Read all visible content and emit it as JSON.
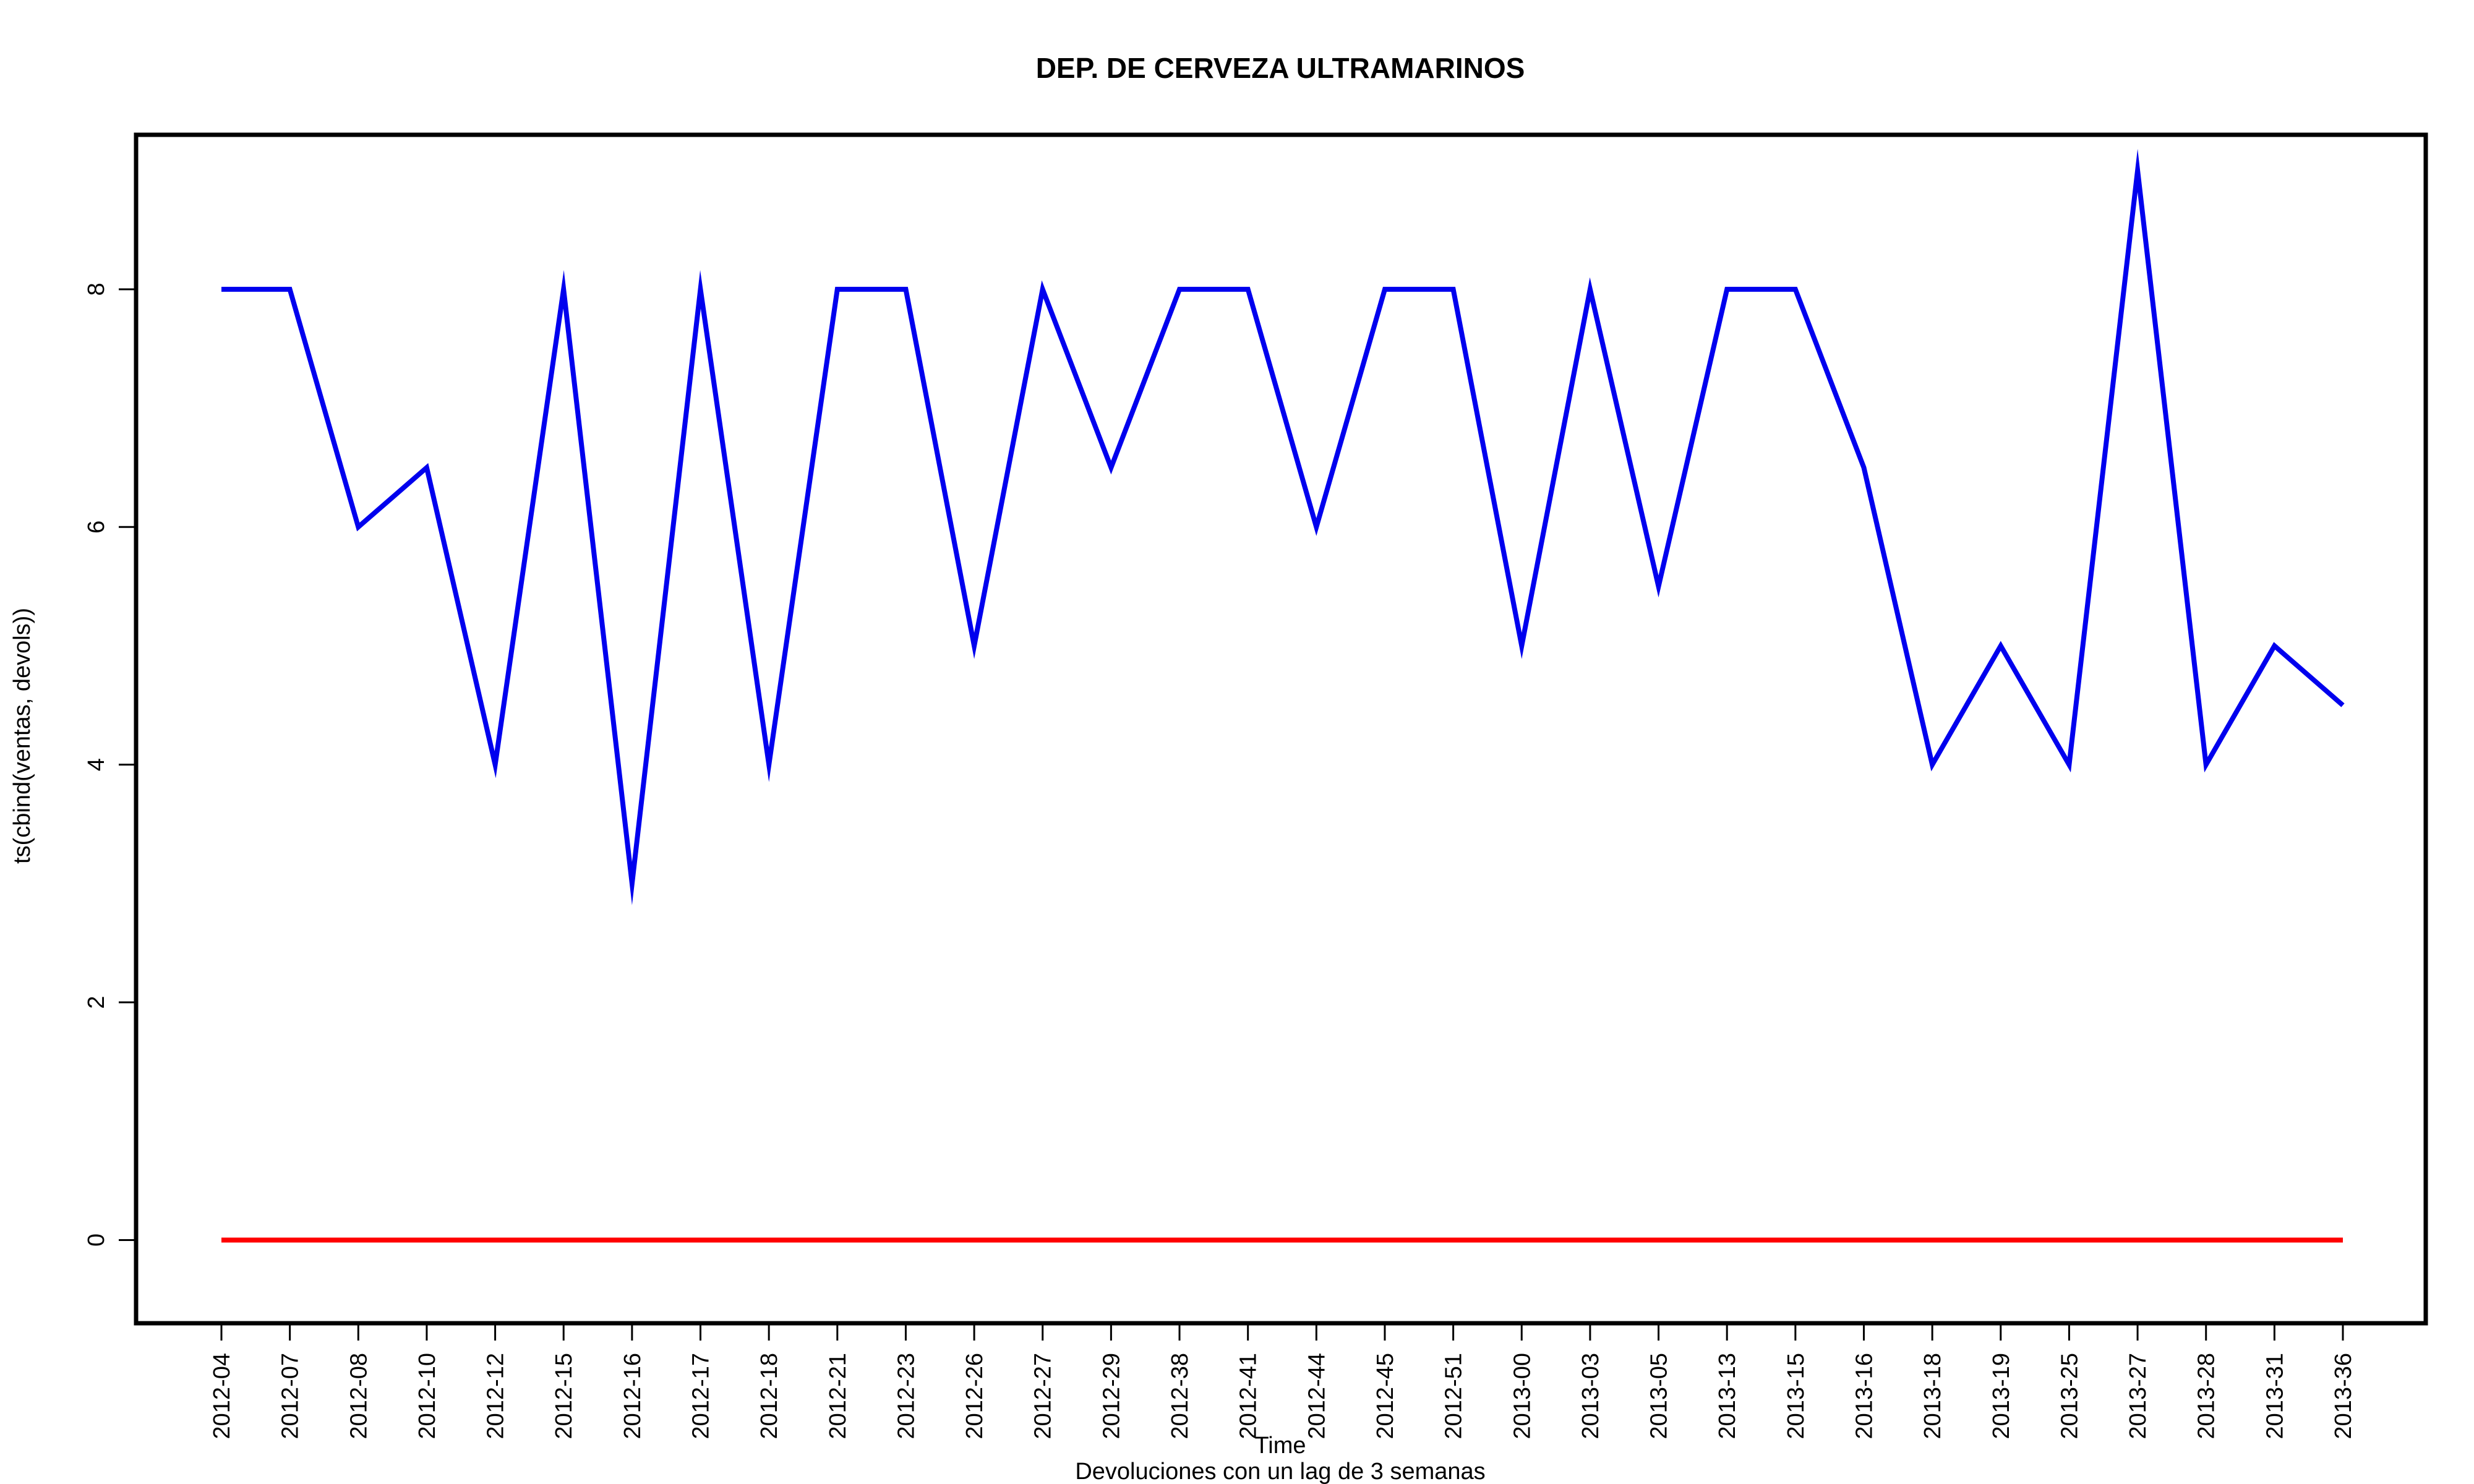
{
  "chart_data": {
    "type": "line",
    "title": "DEP. DE CERVEZA ULTRAMARINOS",
    "xlabel": "Time",
    "ylabel": "ts(cbind(ventas, devols))",
    "subtitle": "Devoluciones con un lag de 3 semanas",
    "categories": [
      "2012-04",
      "2012-07",
      "2012-08",
      "2012-10",
      "2012-12",
      "2012-15",
      "2012-16",
      "2012-17",
      "2012-18",
      "2012-21",
      "2012-23",
      "2012-26",
      "2012-27",
      "2012-29",
      "2012-38",
      "2012-41",
      "2012-44",
      "2012-45",
      "2012-51",
      "2013-00",
      "2013-03",
      "2013-05",
      "2013-13",
      "2013-15",
      "2013-16",
      "2013-18",
      "2013-19",
      "2013-25",
      "2013-27",
      "2013-28",
      "2013-31",
      "2013-36"
    ],
    "y_ticks": [
      0,
      2,
      4,
      6,
      8
    ],
    "ylim": [
      -0.7,
      9.3
    ],
    "grid": false,
    "series": [
      {
        "color": "#0000ee",
        "values": [
          8,
          8,
          6,
          6.5,
          4,
          8,
          3,
          8,
          4,
          8,
          8,
          5,
          8,
          6.5,
          8,
          8,
          6,
          8,
          8,
          5,
          8,
          5.5,
          8,
          8,
          6.5,
          4,
          5,
          4,
          9,
          4,
          5,
          4.5
        ]
      },
      {
        "color": "#ff0000",
        "values": [
          0,
          0,
          0,
          0,
          0,
          0,
          0,
          0,
          0,
          0,
          0,
          0,
          0,
          0,
          0,
          0,
          0,
          0,
          0,
          0,
          0,
          0,
          0,
          0,
          0,
          0,
          0,
          0,
          0,
          0,
          0,
          0
        ]
      }
    ]
  }
}
